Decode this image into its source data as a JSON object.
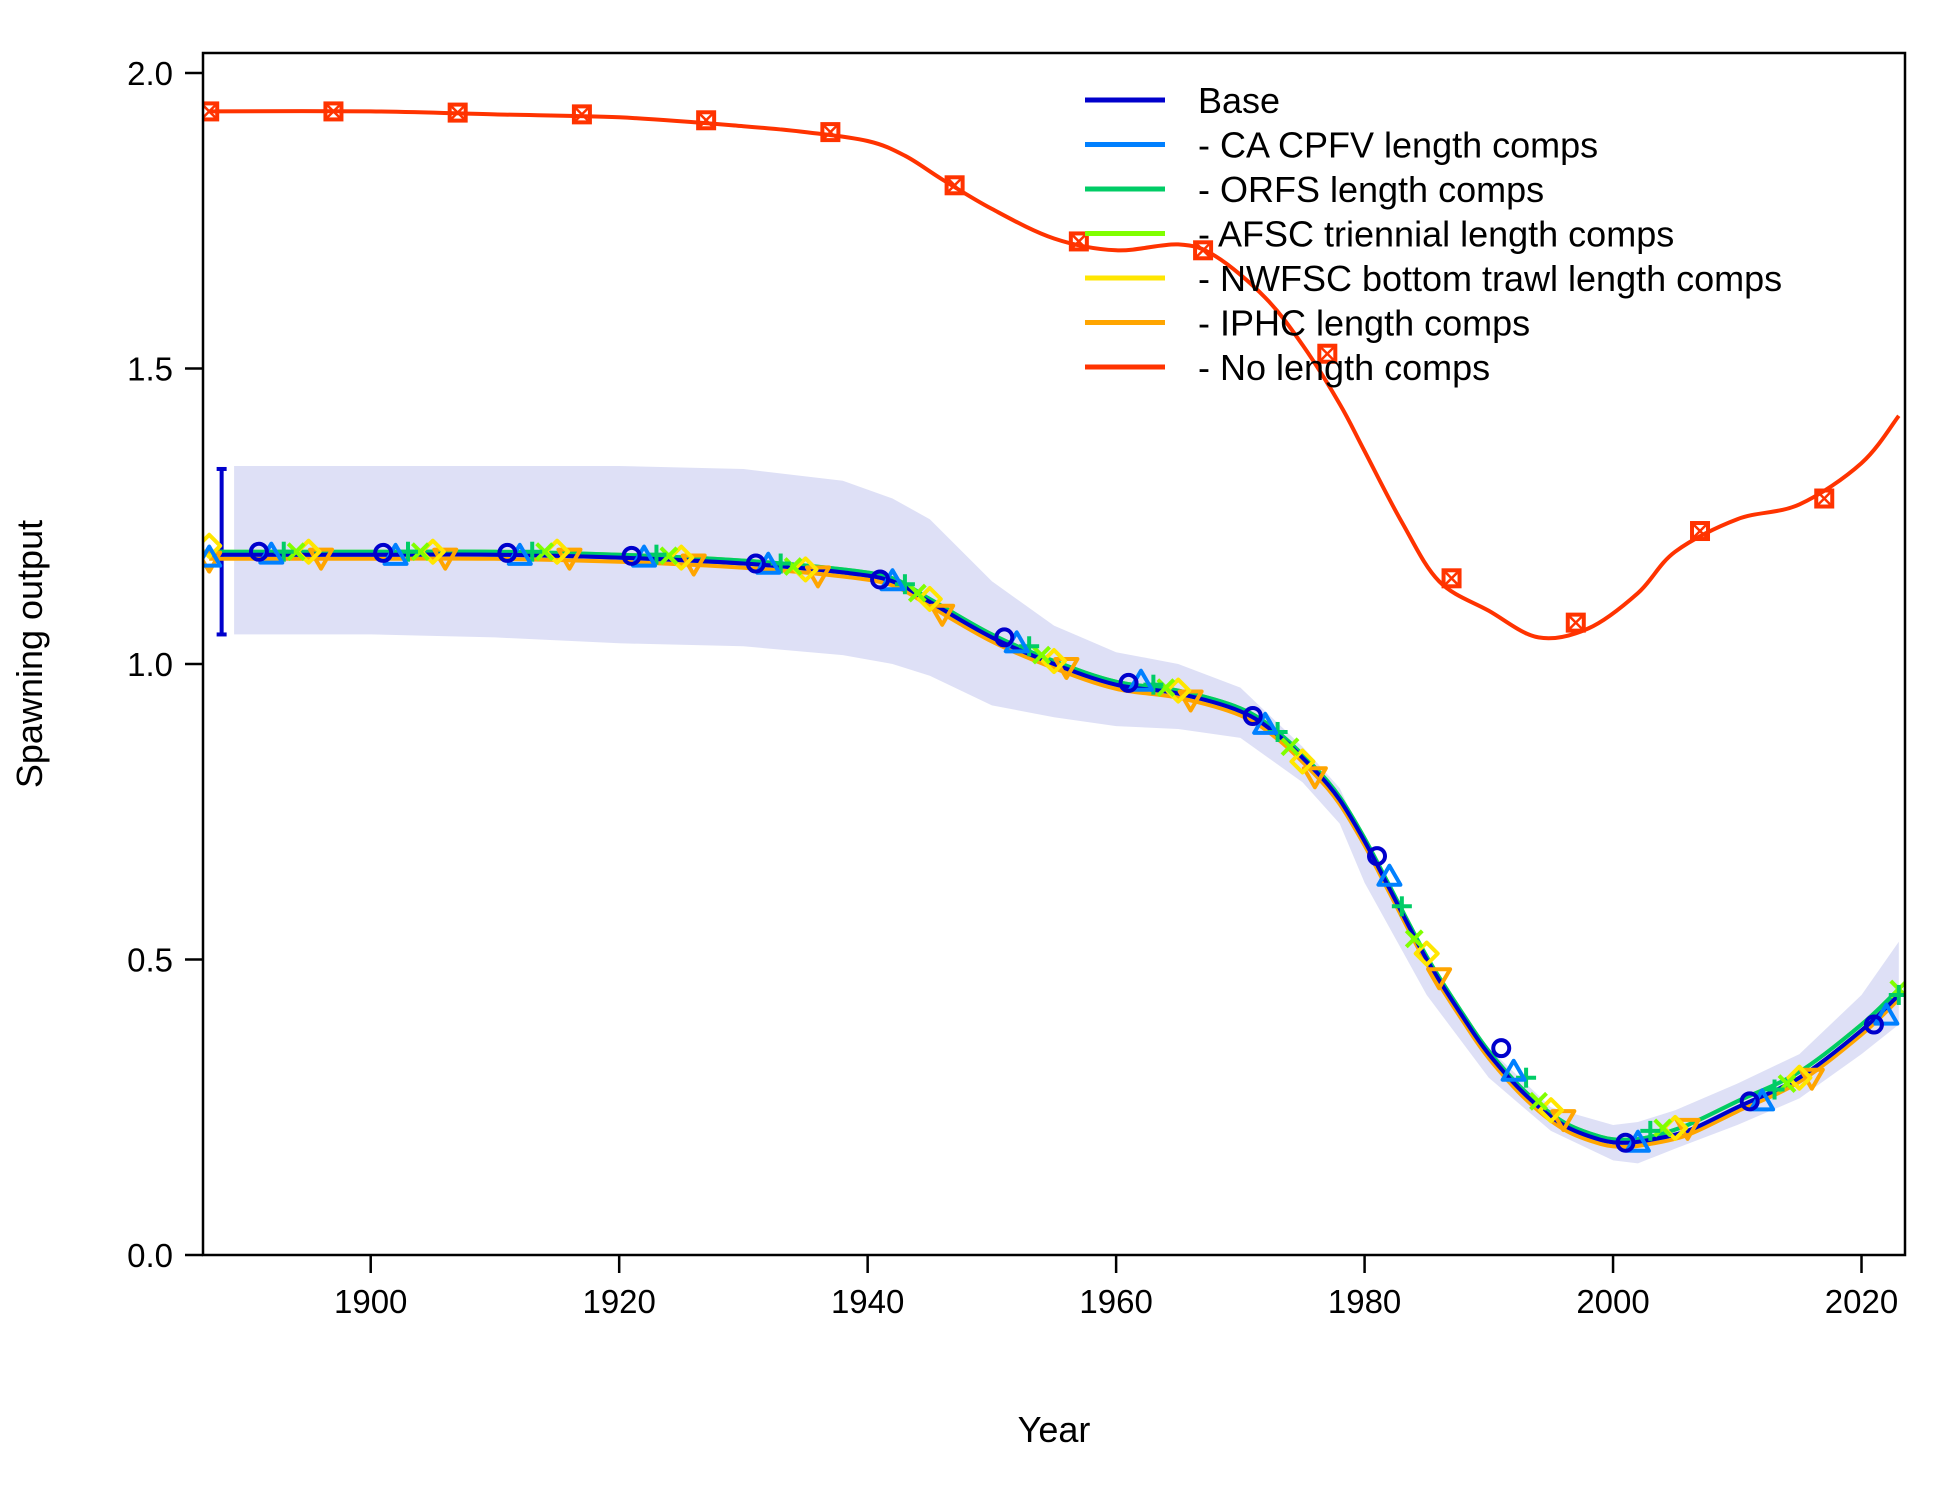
{
  "chart_data": {
    "type": "line",
    "title": "",
    "xlabel": "Year",
    "ylabel": "Spawning output",
    "xlim": [
      1886.5,
      2023.5
    ],
    "ylim": [
      0,
      2.0
    ],
    "x_ticks": [
      1900,
      1920,
      1940,
      1960,
      1980,
      2000,
      2020
    ],
    "y_ticks": [
      0.0,
      0.5,
      1.0,
      1.5,
      2.0
    ],
    "x_tick_labels": [
      "1900",
      "1920",
      "1940",
      "1960",
      "1980",
      "2000",
      "2020"
    ],
    "y_tick_labels": [
      "0.0",
      "0.5",
      "1.0",
      "1.5",
      "2.0"
    ],
    "grid": false,
    "legend_position": "top-right",
    "initial_interval": {
      "x": 1888,
      "low": 1.05,
      "high": 1.33,
      "color": "#0000CC"
    },
    "base_uncertainty_band": {
      "color": "#C8CCF0",
      "x": [
        1889,
        1900,
        1910,
        1920,
        1930,
        1938,
        1942,
        1945,
        1950,
        1955,
        1960,
        1965,
        1970,
        1975,
        1978,
        1980,
        1985,
        1990,
        1995,
        2000,
        2002,
        2005,
        2010,
        2015,
        2020,
        2023
      ],
      "low": [
        1.05,
        1.05,
        1.045,
        1.035,
        1.03,
        1.015,
        1.0,
        0.98,
        0.93,
        0.91,
        0.895,
        0.89,
        0.875,
        0.8,
        0.73,
        0.63,
        0.44,
        0.3,
        0.21,
        0.16,
        0.155,
        0.18,
        0.22,
        0.265,
        0.34,
        0.39
      ],
      "high": [
        1.335,
        1.335,
        1.335,
        1.335,
        1.33,
        1.31,
        1.28,
        1.245,
        1.14,
        1.065,
        1.02,
        1.0,
        0.96,
        0.86,
        0.79,
        0.7,
        0.5,
        0.35,
        0.25,
        0.22,
        0.225,
        0.245,
        0.29,
        0.34,
        0.44,
        0.53
      ]
    },
    "series": [
      {
        "name": "Base",
        "color": "#0000CC",
        "marker": "circle",
        "x": [
          1887,
          1900,
          1910,
          1920,
          1930,
          1938,
          1942,
          1945,
          1950,
          1955,
          1960,
          1965,
          1970,
          1973,
          1976,
          1978,
          1980,
          1982,
          1985,
          1988,
          1990,
          1993,
          1996,
          1999,
          2001,
          2003,
          2006,
          2010,
          2015,
          2020,
          2023
        ],
        "y": [
          1.185,
          1.185,
          1.185,
          1.18,
          1.17,
          1.155,
          1.14,
          1.105,
          1.045,
          1.0,
          0.965,
          0.95,
          0.92,
          0.88,
          0.82,
          0.77,
          0.7,
          0.62,
          0.5,
          0.4,
          0.34,
          0.27,
          0.22,
          0.195,
          0.19,
          0.195,
          0.21,
          0.25,
          0.3,
          0.38,
          0.44
        ],
        "marker_x": [
          1891,
          1901,
          1911,
          1921,
          1931,
          1941,
          1951,
          1961,
          1971,
          1981,
          1991,
          2001,
          2011,
          2021
        ],
        "marker_y": [
          1.19,
          1.188,
          1.188,
          1.183,
          1.17,
          1.143,
          1.045,
          0.968,
          0.912,
          0.675,
          0.35,
          0.19,
          0.26,
          0.39
        ]
      },
      {
        "name": "- CA CPFV length comps",
        "color": "#0080FF",
        "marker": "triangle-up",
        "x": [
          1887,
          1900,
          1910,
          1920,
          1930,
          1938,
          1942,
          1945,
          1950,
          1955,
          1960,
          1965,
          1970,
          1973,
          1976,
          1978,
          1980,
          1982,
          1985,
          1988,
          1990,
          1993,
          1996,
          1999,
          2001,
          2003,
          2006,
          2010,
          2015,
          2020,
          2023
        ],
        "y": [
          1.185,
          1.185,
          1.185,
          1.18,
          1.17,
          1.155,
          1.14,
          1.105,
          1.045,
          1.0,
          0.965,
          0.95,
          0.92,
          0.88,
          0.82,
          0.77,
          0.7,
          0.62,
          0.5,
          0.4,
          0.34,
          0.27,
          0.22,
          0.195,
          0.19,
          0.195,
          0.21,
          0.25,
          0.3,
          0.38,
          0.44
        ],
        "marker_x": [
          1887,
          1892,
          1902,
          1912,
          1922,
          1932,
          1942,
          1952,
          1962,
          1972,
          1982,
          1992,
          2002,
          2012,
          2022
        ],
        "marker_y": [
          1.18,
          1.185,
          1.183,
          1.183,
          1.18,
          1.168,
          1.14,
          1.035,
          0.97,
          0.897,
          0.64,
          0.31,
          0.19,
          0.26,
          0.405
        ]
      },
      {
        "name": "- ORFS length comps",
        "color": "#00CC66",
        "marker": "plus",
        "x": [
          1887,
          1900,
          1910,
          1920,
          1930,
          1938,
          1942,
          1945,
          1950,
          1955,
          1960,
          1965,
          1970,
          1973,
          1976,
          1978,
          1980,
          1982,
          1985,
          1988,
          1990,
          1993,
          1996,
          1999,
          2001,
          2003,
          2006,
          2010,
          2015,
          2020,
          2023
        ],
        "y": [
          1.19,
          1.19,
          1.19,
          1.185,
          1.175,
          1.16,
          1.145,
          1.11,
          1.05,
          1.005,
          0.97,
          0.955,
          0.925,
          0.885,
          0.825,
          0.775,
          0.705,
          0.625,
          0.505,
          0.405,
          0.345,
          0.275,
          0.225,
          0.2,
          0.195,
          0.2,
          0.22,
          0.26,
          0.31,
          0.39,
          0.45
        ],
        "marker_x": [
          1893,
          1903,
          1913,
          1923,
          1933,
          1943,
          1953,
          1963,
          1973,
          1983,
          1993,
          2003,
          2013,
          2023
        ],
        "marker_y": [
          1.19,
          1.19,
          1.19,
          1.185,
          1.17,
          1.135,
          1.03,
          0.965,
          0.885,
          0.59,
          0.3,
          0.21,
          0.28,
          0.44
        ]
      },
      {
        "name": "- AFSC triennial length comps",
        "color": "#80FF00",
        "marker": "x",
        "x": [
          1887,
          1900,
          1910,
          1920,
          1930,
          1938,
          1942,
          1945,
          1950,
          1955,
          1960,
          1965,
          1970,
          1973,
          1976,
          1978,
          1980,
          1982,
          1985,
          1988,
          1990,
          1993,
          1996,
          1999,
          2001,
          2003,
          2006,
          2010,
          2015,
          2020,
          2023
        ],
        "y": [
          1.19,
          1.19,
          1.19,
          1.185,
          1.175,
          1.16,
          1.145,
          1.11,
          1.05,
          1.005,
          0.97,
          0.955,
          0.925,
          0.885,
          0.825,
          0.775,
          0.705,
          0.625,
          0.505,
          0.405,
          0.345,
          0.275,
          0.225,
          0.2,
          0.195,
          0.2,
          0.22,
          0.26,
          0.31,
          0.39,
          0.45
        ],
        "marker_x": [
          1894,
          1904,
          1914,
          1924,
          1934,
          1944,
          1954,
          1964,
          1974,
          1984,
          1994,
          2004,
          2014,
          2023
        ],
        "marker_y": [
          1.19,
          1.19,
          1.19,
          1.183,
          1.165,
          1.12,
          1.015,
          0.96,
          0.86,
          0.535,
          0.26,
          0.215,
          0.29,
          0.45
        ]
      },
      {
        "name": "- NWFSC bottom trawl length comps",
        "color": "#FFE600",
        "marker": "diamond",
        "x": [
          1887,
          1900,
          1910,
          1920,
          1930,
          1938,
          1942,
          1945,
          1950,
          1955,
          1960,
          1965,
          1970,
          1973,
          1976,
          1978,
          1980,
          1982,
          1985,
          1988,
          1990,
          1993,
          1996,
          1999,
          2001,
          2003,
          2006,
          2010,
          2015,
          2020,
          2023
        ],
        "y": [
          1.185,
          1.185,
          1.185,
          1.18,
          1.17,
          1.155,
          1.14,
          1.105,
          1.045,
          1.0,
          0.965,
          0.95,
          0.92,
          0.88,
          0.82,
          0.77,
          0.7,
          0.62,
          0.5,
          0.4,
          0.34,
          0.27,
          0.22,
          0.195,
          0.19,
          0.195,
          0.21,
          0.25,
          0.3,
          0.38,
          0.44
        ],
        "marker_x": [
          1887,
          1895,
          1905,
          1915,
          1925,
          1935,
          1945,
          1955,
          1965,
          1975,
          1985,
          1995,
          2005,
          2015
        ],
        "marker_y": [
          1.2,
          1.19,
          1.19,
          1.19,
          1.18,
          1.16,
          1.11,
          1.005,
          0.955,
          0.835,
          0.51,
          0.245,
          0.215,
          0.3
        ]
      },
      {
        "name": "- IPHC length comps",
        "color": "#FFA500",
        "marker": "triangle-down",
        "x": [
          1887,
          1900,
          1910,
          1920,
          1930,
          1938,
          1942,
          1945,
          1950,
          1955,
          1960,
          1965,
          1970,
          1973,
          1976,
          1978,
          1980,
          1982,
          1985,
          1988,
          1990,
          1993,
          1996,
          1999,
          2001,
          2003,
          2006,
          2010,
          2015,
          2020,
          2023
        ],
        "y": [
          1.178,
          1.178,
          1.178,
          1.173,
          1.163,
          1.148,
          1.133,
          1.098,
          1.038,
          0.993,
          0.958,
          0.943,
          0.913,
          0.873,
          0.813,
          0.763,
          0.693,
          0.613,
          0.493,
          0.393,
          0.333,
          0.263,
          0.213,
          0.188,
          0.183,
          0.188,
          0.203,
          0.243,
          0.293,
          0.373,
          0.433
        ],
        "marker_x": [
          1887,
          1896,
          1906,
          1916,
          1926,
          1936,
          1946,
          1956,
          1966,
          1976,
          1986,
          1996,
          2006,
          2016
        ],
        "marker_y": [
          1.175,
          1.18,
          1.18,
          1.18,
          1.17,
          1.15,
          1.085,
          0.995,
          0.94,
          0.81,
          0.47,
          0.23,
          0.215,
          0.3
        ]
      },
      {
        "name": "- No length comps",
        "color": "#FF3300",
        "marker": "boxed-x",
        "x": [
          1887,
          1900,
          1910,
          1920,
          1930,
          1935,
          1940,
          1943,
          1946,
          1950,
          1955,
          1960,
          1965,
          1968,
          1972,
          1975,
          1978,
          1980,
          1983,
          1986,
          1990,
          1994,
          1998,
          2002,
          2005,
          2010,
          2015,
          2020,
          2023
        ],
        "y": [
          1.935,
          1.935,
          1.93,
          1.925,
          1.91,
          1.9,
          1.885,
          1.86,
          1.82,
          1.77,
          1.72,
          1.7,
          1.71,
          1.69,
          1.62,
          1.54,
          1.44,
          1.36,
          1.24,
          1.14,
          1.09,
          1.045,
          1.06,
          1.12,
          1.19,
          1.245,
          1.27,
          1.34,
          1.42
        ],
        "marker_x": [
          1887,
          1897,
          1907,
          1917,
          1927,
          1937,
          1947,
          1957,
          1967,
          1977,
          1987,
          1997,
          2007,
          2017
        ],
        "marker_y": [
          1.935,
          1.935,
          1.933,
          1.93,
          1.92,
          1.9,
          1.81,
          1.715,
          1.7,
          1.525,
          1.145,
          1.07,
          1.225,
          1.28
        ]
      }
    ]
  }
}
